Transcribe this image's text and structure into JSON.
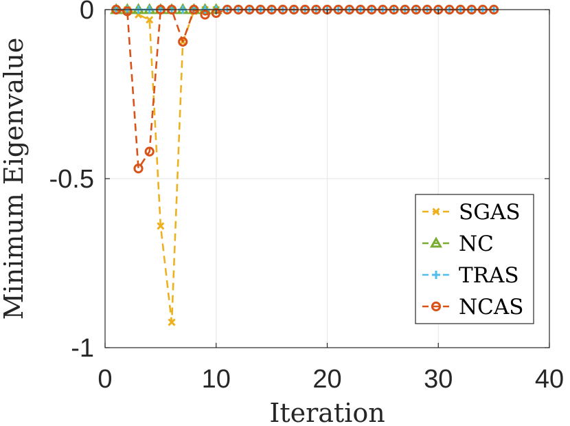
{
  "chart_data": {
    "type": "line",
    "xlabel": "Iteration",
    "ylabel": "Minimum Eigenvalue",
    "xlim": [
      0,
      40
    ],
    "ylim": [
      -1,
      0
    ],
    "xticks": [
      0,
      10,
      20,
      30,
      40
    ],
    "xtick_labels": [
      "0",
      "10",
      "20",
      "30",
      "40"
    ],
    "yticks": [
      -1,
      -0.5,
      0
    ],
    "ytick_labels": [
      "-1",
      "-0.5",
      "0"
    ],
    "grid": true,
    "legend_position": "bottom-right",
    "series": [
      {
        "name": "SGAS",
        "color": "#EDB120",
        "marker": "x",
        "x": [
          1,
          2,
          3,
          4,
          5,
          6,
          7,
          8,
          9,
          10
        ],
        "y": [
          0,
          0,
          -0.015,
          -0.03,
          -0.64,
          -0.925,
          -0.095,
          -0.005,
          0,
          0
        ]
      },
      {
        "name": "NC",
        "color": "#77AC30",
        "marker": "triangle",
        "x": [
          1,
          2,
          3,
          4,
          5,
          6,
          7,
          8,
          9,
          10
        ],
        "y": [
          0,
          0,
          0,
          0,
          0,
          0,
          0,
          0,
          0,
          0
        ]
      },
      {
        "name": "TRAS",
        "color": "#4DBEEE",
        "marker": "plus",
        "x": [
          1,
          2,
          3,
          4,
          5,
          6,
          7,
          8,
          9,
          10,
          11,
          12,
          13,
          14,
          15,
          16,
          17,
          18,
          19,
          20,
          21,
          22,
          23,
          24,
          25,
          26,
          27,
          28,
          29,
          30,
          31,
          32,
          33,
          34,
          35
        ],
        "y": [
          0,
          0,
          0,
          0,
          0,
          0,
          0,
          0,
          0,
          0,
          0,
          0,
          0,
          0,
          0,
          0,
          0,
          0,
          0,
          0,
          0,
          0,
          0,
          0,
          0,
          0,
          0,
          0,
          0,
          0,
          0,
          0,
          0,
          0,
          0
        ]
      },
      {
        "name": "NCAS",
        "color": "#D95319",
        "marker": "circle",
        "x": [
          1,
          2,
          3,
          4,
          5,
          6,
          7,
          8,
          9,
          10,
          11,
          12,
          13,
          14,
          15,
          16,
          17,
          18,
          19,
          20,
          21,
          22,
          23,
          24,
          25,
          26,
          27,
          28,
          29,
          30,
          31,
          32,
          33,
          34,
          35
        ],
        "y": [
          0,
          -0.005,
          -0.47,
          -0.42,
          0,
          0,
          -0.095,
          0,
          -0.015,
          -0.01,
          0,
          0,
          0,
          0,
          0,
          0,
          0,
          0,
          0,
          0,
          0,
          0,
          0,
          0,
          0,
          0,
          0,
          0,
          0,
          0,
          0,
          0,
          0,
          0,
          0
        ]
      }
    ]
  }
}
